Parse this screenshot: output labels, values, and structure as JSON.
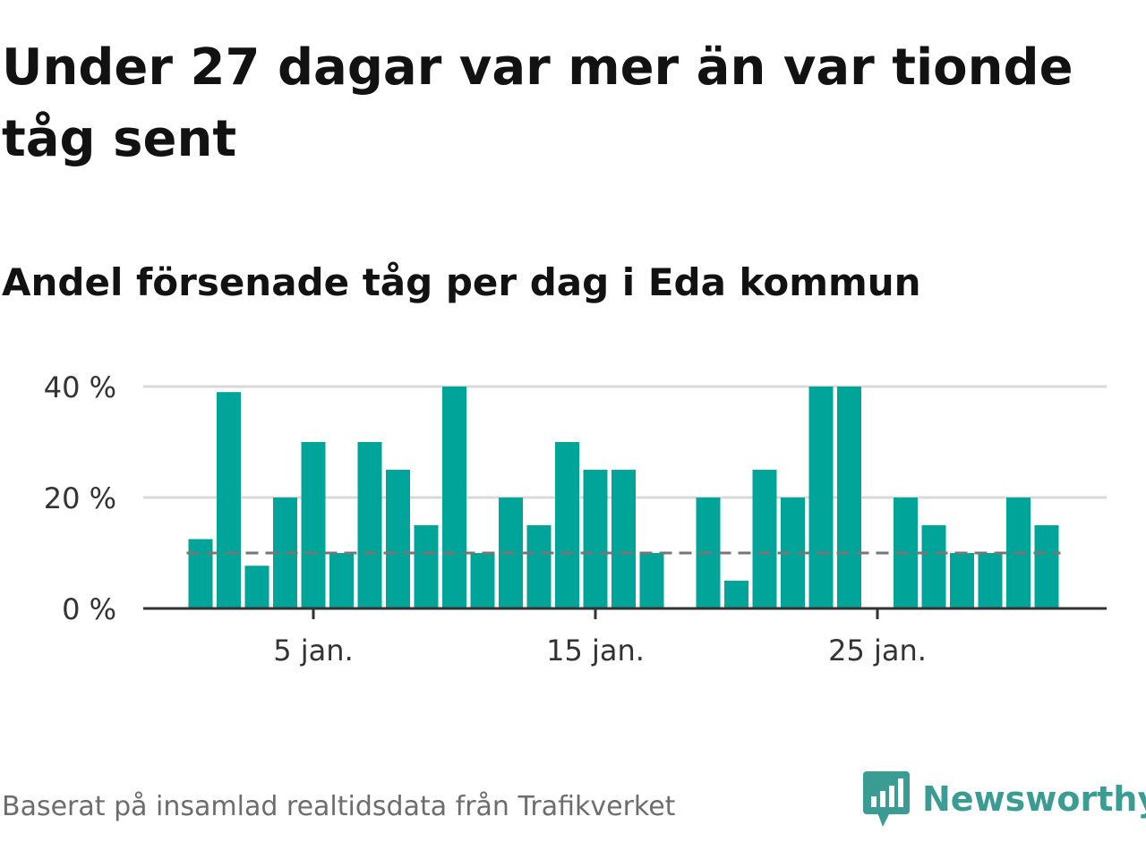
{
  "title": "Under 27 dagar var mer än var tionde tåg sent",
  "subtitle": "Andel försenade tåg per dag i Eda kommun",
  "footer": {
    "source": "Baserat på insamlad realtidsdata från Trafikverket",
    "brand": "Newsworthy"
  },
  "colors": {
    "bar": "#00a498",
    "reference_line": "#767676",
    "grid": "#d9d9d9",
    "axis": "#333333",
    "brand": "#3a9c92"
  },
  "chart_data": {
    "type": "bar",
    "x": [
      1,
      2,
      3,
      4,
      5,
      6,
      7,
      8,
      9,
      10,
      11,
      12,
      13,
      14,
      15,
      16,
      17,
      18,
      19,
      20,
      21,
      22,
      23,
      24,
      25,
      26,
      27,
      28,
      29,
      30,
      31
    ],
    "values": [
      12.5,
      39,
      7.7,
      20,
      30,
      10,
      30,
      25,
      15,
      40,
      10,
      20,
      15,
      30,
      25,
      25,
      10,
      0,
      20,
      5,
      25,
      20,
      40,
      40,
      0,
      20,
      15,
      10,
      10,
      20,
      15
    ],
    "reference_line": 10,
    "x_ticks": [
      5,
      15,
      25
    ],
    "x_tick_labels": [
      "5 jan.",
      "15 jan.",
      "25 jan."
    ],
    "y_ticks": [
      0,
      20,
      40
    ],
    "y_tick_labels": [
      "0 %",
      "20 %",
      "40 %"
    ],
    "ylim": [
      0,
      40
    ],
    "grid": true
  }
}
